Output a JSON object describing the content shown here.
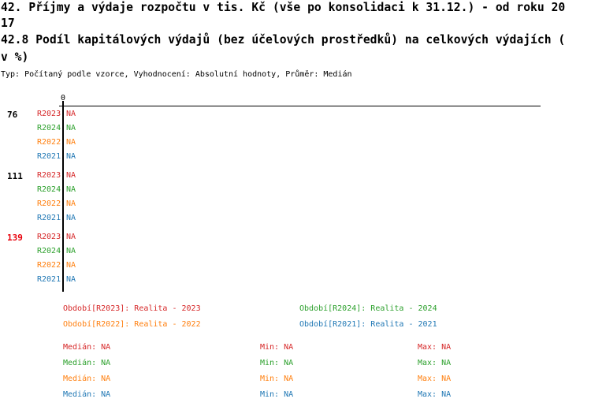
{
  "title_lines": [
    "42. Příjmy a výdaje rozpočtu v tis. Kč (vše po konsolidaci k 31.12.) - od roku 20",
    "17",
    "42.8 Podíl kapitálových výdajů (bez účelových prostředků) na celkových výdajích (",
    "v %)"
  ],
  "subtitle": "Typ: Počítaný podle vzorce, Vyhodnocení: Absolutní hodnoty, Průměr: Medián",
  "colors": {
    "R2023": "#d62728",
    "R2024": "#2ca02c",
    "R2022": "#ff7f0e",
    "R2021": "#1f77b4",
    "highlight": "#e8000b"
  },
  "chart_data": {
    "type": "bar",
    "orientation": "horizontal",
    "x_tick_labels": [
      "0"
    ],
    "groups": [
      {
        "label": "76",
        "highlight": false,
        "rows": [
          {
            "series": "R2023",
            "value": "NA"
          },
          {
            "series": "R2024",
            "value": "NA"
          },
          {
            "series": "R2022",
            "value": "NA"
          },
          {
            "series": "R2021",
            "value": "NA"
          }
        ]
      },
      {
        "label": "111",
        "highlight": false,
        "rows": [
          {
            "series": "R2023",
            "value": "NA"
          },
          {
            "series": "R2024",
            "value": "NA"
          },
          {
            "series": "R2022",
            "value": "NA"
          },
          {
            "series": "R2021",
            "value": "NA"
          }
        ]
      },
      {
        "label": "139",
        "highlight": true,
        "rows": [
          {
            "series": "R2023",
            "value": "NA"
          },
          {
            "series": "R2024",
            "value": "NA"
          },
          {
            "series": "R2022",
            "value": "NA"
          },
          {
            "series": "R2021",
            "value": "NA"
          }
        ]
      }
    ],
    "legend": [
      {
        "series": "R2023",
        "text": "Období[R2023]: Realita - 2023"
      },
      {
        "series": "R2024",
        "text": "Období[R2024]: Realita - 2024"
      },
      {
        "series": "R2022",
        "text": "Období[R2022]: Realita - 2022"
      },
      {
        "series": "R2021",
        "text": "Období[R2021]: Realita - 2021"
      }
    ],
    "stats": [
      {
        "series": "R2023",
        "median": "Medián: NA",
        "min": "Min: NA",
        "max": "Max: NA"
      },
      {
        "series": "R2024",
        "median": "Medián: NA",
        "min": "Min: NA",
        "max": "Max: NA"
      },
      {
        "series": "R2022",
        "median": "Medián: NA",
        "min": "Min: NA",
        "max": "Max: NA"
      },
      {
        "series": "R2021",
        "median": "Medián: NA",
        "min": "Min: NA",
        "max": "Max: NA"
      }
    ]
  }
}
